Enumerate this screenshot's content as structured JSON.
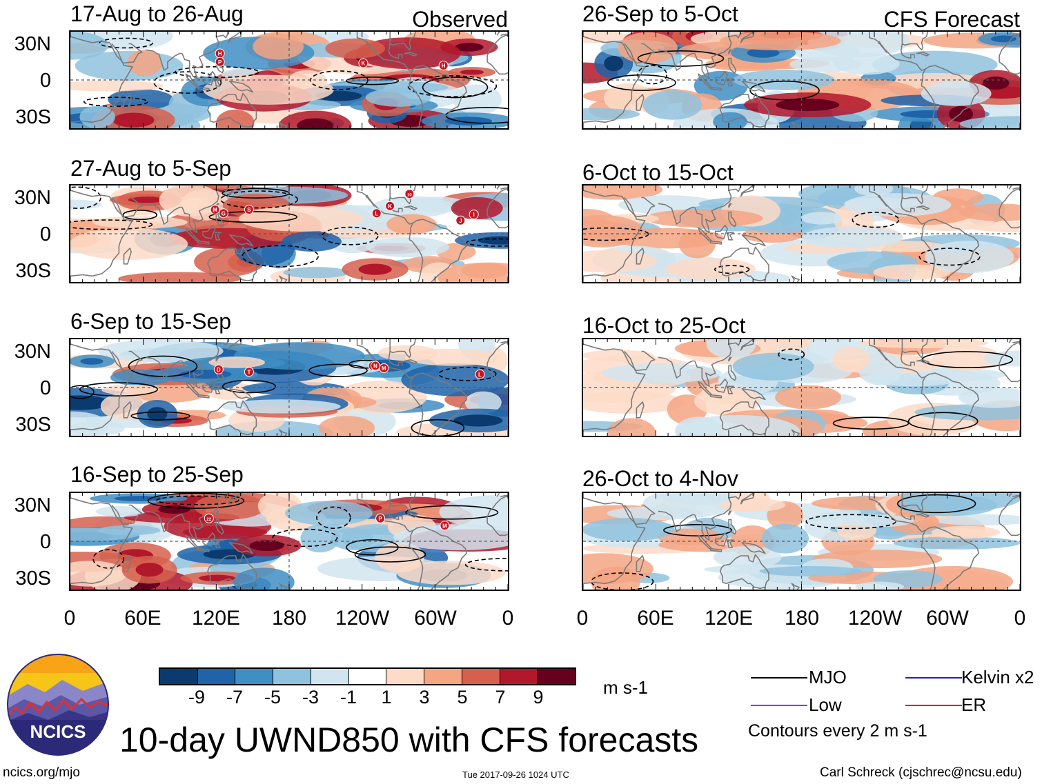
{
  "panels_left": [
    {
      "title": "17-Aug to 26-Aug",
      "tag": "Observed",
      "storms": [
        {
          "label": "H",
          "lon": 123,
          "lat": 22
        },
        {
          "label": "P",
          "lon": 123,
          "lat": 15
        },
        {
          "label": "K",
          "lon": 241,
          "lat": 14
        },
        {
          "label": "H",
          "lon": 307,
          "lat": 12
        }
      ]
    },
    {
      "title": "27-Aug to 5-Sep",
      "tag": "",
      "storms": [
        {
          "label": "M",
          "lon": 119,
          "lat": 20
        },
        {
          "label": "G",
          "lon": 126,
          "lat": 17
        },
        {
          "label": "S",
          "lon": 147,
          "lat": 20
        },
        {
          "label": "L",
          "lon": 252,
          "lat": 17
        },
        {
          "label": "K",
          "lon": 263,
          "lat": 23
        },
        {
          "label": "10",
          "lon": 279,
          "lat": 33
        },
        {
          "label": "J",
          "lon": 321,
          "lat": 11
        },
        {
          "label": "I",
          "lon": 332,
          "lat": 16
        }
      ]
    },
    {
      "title": "6-Sep to 15-Sep",
      "tag": "",
      "storms": [
        {
          "label": "D",
          "lon": 122,
          "lat": 15
        },
        {
          "label": "T",
          "lon": 147,
          "lat": 13
        },
        {
          "label": "O",
          "lon": 249,
          "lat": 18
        },
        {
          "label": "N",
          "lon": 251,
          "lat": 18
        },
        {
          "label": "M",
          "lon": 258,
          "lat": 16
        },
        {
          "label": "L",
          "lon": 337,
          "lat": 11
        }
      ]
    },
    {
      "title": "16-Sep to 25-Sep",
      "tag": "",
      "storms": [
        {
          "label": "22",
          "lon": 114,
          "lat": 19
        },
        {
          "label": "P",
          "lon": 255,
          "lat": 19
        },
        {
          "label": "M",
          "lon": 308,
          "lat": 13
        }
      ]
    }
  ],
  "panels_right": [
    {
      "title": "26-Sep to 5-Oct",
      "tag": "CFS Forecast"
    },
    {
      "title": "6-Oct to 15-Oct",
      "tag": ""
    },
    {
      "title": "16-Oct to 25-Oct",
      "tag": ""
    },
    {
      "title": "26-Oct to 4-Nov",
      "tag": ""
    }
  ],
  "lat_labels": [
    "30N",
    "0",
    "30S"
  ],
  "lon_labels": [
    "0",
    "60E",
    "120E",
    "180",
    "120W",
    "60W",
    "0"
  ],
  "colorbar": {
    "colors": [
      "#0b3a6e",
      "#1f63a8",
      "#3f8ec4",
      "#8fc2de",
      "#d1e5f0",
      "#ffffff",
      "#fddbc7",
      "#f4a582",
      "#d6604d",
      "#b2182b",
      "#67001f"
    ],
    "ticks": [
      "-9",
      "-7",
      "-5",
      "-3",
      "-1",
      "1",
      "3",
      "5",
      "7",
      "9"
    ],
    "units": "m s-1"
  },
  "legend": {
    "items": [
      {
        "label": "MJO",
        "color": "#000000"
      },
      {
        "label": "Kelvin x2",
        "color": "#1a1adb"
      },
      {
        "label": "Low",
        "color": "#9a33e0"
      },
      {
        "label": "ER",
        "color": "#e02020"
      }
    ],
    "note": "Contours every 2 m s-1"
  },
  "logo_text": "NCICS",
  "main_title": "10-day UWND850 with CFS forecasts",
  "footer": {
    "left": "ncics.org/mjo",
    "center": "Tue 2017-09-26 1024 UTC",
    "right": "Carl Schreck (cjschrec@ncsu.edu)"
  }
}
